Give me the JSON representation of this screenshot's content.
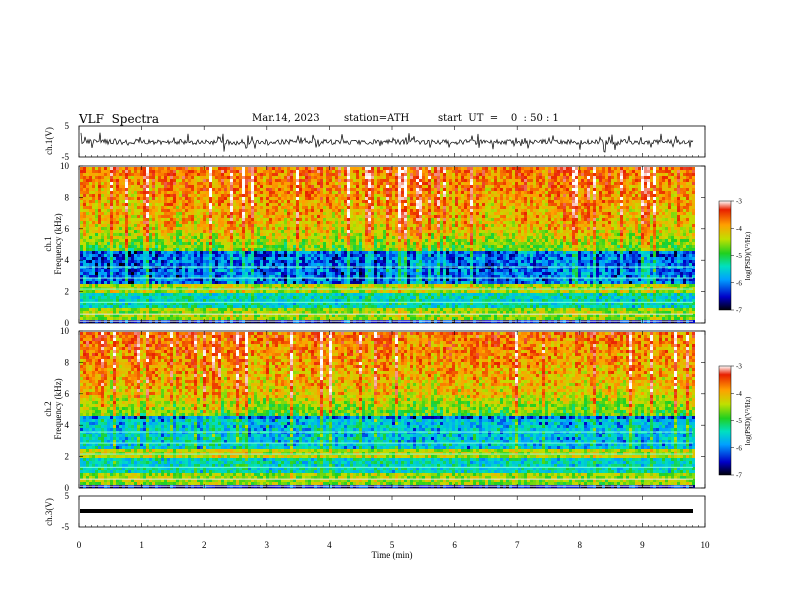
{
  "header": {
    "title": "VLF  Spectra",
    "date": "Mar.14, 2023",
    "station": "station=ATH",
    "start": "start  UT  =    0  : 50 : 1"
  },
  "chart_data": {
    "type": "heatmap",
    "xlabel": "Time  (min)",
    "xlim": [
      0,
      10
    ],
    "xticks": [
      "0",
      "1",
      "2",
      "3",
      "4",
      "5",
      "6",
      "7",
      "8",
      "9",
      "10"
    ],
    "panels": [
      {
        "id": "ch1-waveform",
        "type": "line",
        "ylabel": "ch.1(V)",
        "ylim": [
          -5,
          5
        ],
        "yticks": [
          "5",
          "-5"
        ],
        "color": "#000000"
      },
      {
        "id": "ch1-spectrogram",
        "type": "heatmap",
        "ylabel": [
          "ch.1",
          "Frequency  (kHz)"
        ],
        "ylim": [
          0,
          10
        ],
        "yticks": [
          "0",
          "2",
          "4",
          "6",
          "8",
          "10"
        ],
        "colorbar": {
          "label": "log(PSD)(V²/Hz)",
          "range": [
            -7,
            -3
          ],
          "ticks": [
            "-3",
            "-4",
            "-5",
            "-6",
            "-7"
          ]
        }
      },
      {
        "id": "ch2-spectrogram",
        "type": "heatmap",
        "ylabel": [
          "ch.2",
          "Frequency  (kHz)"
        ],
        "ylim": [
          0,
          10
        ],
        "yticks": [
          "0",
          "2",
          "4",
          "6",
          "8",
          "10"
        ],
        "colorbar": {
          "label": "log(PSD)(V²/Hz)",
          "range": [
            -7,
            -3
          ],
          "ticks": [
            "-3",
            "-4",
            "-5",
            "-6",
            "-7"
          ]
        }
      },
      {
        "id": "ch3-waveform",
        "type": "line",
        "ylabel": "ch.3(V)",
        "ylim": [
          -5,
          5
        ],
        "yticks": [
          "5",
          "-5"
        ],
        "values_approx": 0,
        "color": "#000000"
      }
    ],
    "grid": false,
    "colormap": [
      "#00000a",
      "#0000c8",
      "#00a0ff",
      "#00e0c0",
      "#20d020",
      "#c0e000",
      "#ffa000",
      "#e82000",
      "#ffffff"
    ]
  }
}
